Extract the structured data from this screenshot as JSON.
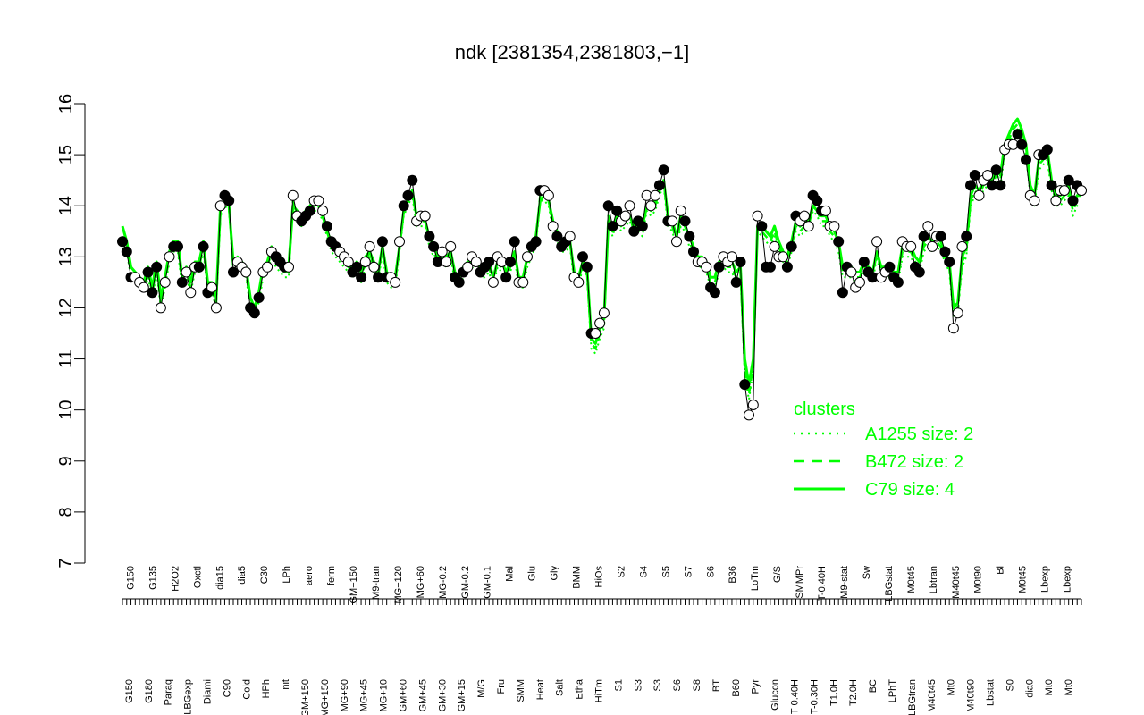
{
  "chart_data": {
    "type": "line",
    "title": "ndk [2381354,2381803,−1]",
    "xlabel": "",
    "ylabel": "",
    "ylim": [
      7,
      16
    ],
    "yticks": [
      7,
      8,
      9,
      10,
      11,
      12,
      13,
      14,
      15,
      16
    ],
    "grid": false,
    "colors": {
      "cluster": "#00ff00",
      "points": "#000000",
      "axis": "#000000",
      "background": "#ffffff"
    },
    "x_labels_top": [
      "G150",
      "G135",
      "H2O2",
      "Oxctl",
      "dia15",
      "dia5",
      "C30",
      "LPh",
      "aero",
      "ferm",
      "GM+150",
      "M9-tran",
      "MG+120",
      "MG+60",
      "MG-0.2",
      "GM-0.2",
      "GM-0.1",
      "Mal",
      "Glu",
      "Gly",
      "BMM",
      "HiOs",
      "S2",
      "S4",
      "S5",
      "S7",
      "S6",
      "B36",
      "LoTm",
      "G/S",
      "SMMPr",
      "T-0.40H",
      "M9-stat",
      "Sw",
      "LBGstat",
      "M0t45",
      "Lbtran",
      "M40t45",
      "M0t90",
      "Bl",
      "M0t45",
      "Lbexp",
      "Lbexp"
    ],
    "x_labels_bottom": [
      "G150",
      "G180",
      "Paraq",
      "LBGexp",
      "Diami",
      "C90",
      "Cold",
      "HPh",
      "nit",
      "GM+150",
      "MG+150",
      "MG+90",
      "MG+45",
      "MG+10",
      "GM+60",
      "GM+45",
      "GM+30",
      "GM+15",
      "M/G",
      "Fru",
      "SMM",
      "Heat",
      "Salt",
      "Etha",
      "HiTm",
      "S1",
      "S3",
      "S3",
      "S6",
      "S8",
      "BT",
      "B60",
      "Pyr",
      "Glucon",
      "T-0.40H",
      "T-0.30H",
      "T1.0H",
      "T2.0H",
      "BC",
      "LPhT",
      "LBGtran",
      "M40t45",
      "Mt0",
      "M40t90",
      "Lbstat",
      "S0",
      "dia0",
      "Mt0",
      "Mt0"
    ],
    "legend": {
      "title": "clusters",
      "placement": "right",
      "entries": [
        {
          "label": "A1255 size: 2",
          "style": "dotted"
        },
        {
          "label": "B472 size: 2",
          "style": "dashed"
        },
        {
          "label": "C79 size: 4",
          "style": "solid"
        }
      ]
    },
    "series": [
      {
        "style": "points-line",
        "y": [
          13.3,
          13.1,
          12.6,
          12.6,
          12.5,
          12.4,
          12.7,
          12.3,
          12.8,
          12.0,
          12.5,
          13.0,
          13.2,
          13.2,
          12.5,
          12.7,
          12.3,
          12.8,
          12.8,
          13.2,
          12.3,
          12.4,
          12.0,
          14.0,
          14.2,
          14.1,
          12.7,
          12.9,
          12.8,
          12.7,
          12.0,
          11.9,
          12.2,
          12.7,
          12.8,
          13.1,
          13.0,
          12.9,
          12.8,
          12.8,
          14.2,
          13.8,
          13.7,
          13.8,
          13.9,
          14.1,
          14.1,
          13.9,
          13.6,
          13.3,
          13.2,
          13.1,
          13.0,
          12.9,
          12.7,
          12.8,
          12.6,
          12.9,
          13.2,
          12.8,
          12.6,
          13.3,
          12.6,
          12.6,
          12.5,
          13.3,
          14.0,
          14.2,
          14.5,
          13.7,
          13.8,
          13.8,
          13.4,
          13.2,
          12.9,
          13.1,
          12.9,
          13.2,
          12.6,
          12.5,
          12.7,
          12.8,
          13.0,
          12.9,
          12.7,
          12.8,
          12.9,
          12.5,
          13.0,
          12.9,
          12.6,
          12.9,
          13.3,
          12.5,
          12.5,
          13.0,
          13.2,
          13.3,
          14.3,
          14.3,
          14.2,
          13.6,
          13.4,
          13.2,
          13.3,
          13.4,
          12.6,
          12.5,
          13.0,
          12.8,
          11.5,
          11.5,
          11.7,
          11.9,
          14.0,
          13.6,
          13.9,
          13.7,
          13.8,
          14.0,
          13.5,
          13.7,
          13.6,
          14.2,
          14.0,
          14.2,
          14.4,
          14.7,
          13.7,
          13.7,
          13.3,
          13.9,
          13.7,
          13.4,
          13.1,
          12.9,
          12.9,
          12.8,
          12.4,
          12.3,
          12.8,
          13.0,
          12.9,
          13.0,
          12.5,
          12.9,
          10.5,
          9.9,
          10.1,
          13.8,
          13.6,
          12.8,
          12.8,
          13.2,
          13.0,
          13.0,
          12.8,
          13.2,
          13.8,
          13.7,
          13.8,
          13.6,
          14.2,
          14.1,
          13.9,
          13.9,
          13.6,
          13.6,
          13.3,
          12.3,
          12.8,
          12.7,
          12.4,
          12.5,
          12.9,
          12.7,
          12.6,
          13.3,
          12.6,
          12.7,
          12.8,
          12.6,
          12.5,
          13.3,
          13.2,
          13.2,
          12.8,
          12.7,
          13.4,
          13.6,
          13.2,
          13.4,
          13.4,
          13.1,
          12.9,
          11.6,
          11.9,
          13.2,
          13.4,
          14.4,
          14.6,
          14.2,
          14.5,
          14.6,
          14.4,
          14.7,
          14.4,
          15.1,
          15.2,
          15.2,
          15.4,
          15.2,
          14.9,
          14.2,
          14.1,
          15.0,
          15.0,
          15.1,
          14.4,
          14.1,
          14.3,
          14.3,
          14.5,
          14.1,
          14.4,
          14.3
        ]
      },
      {
        "style": "cluster-C79",
        "y": [
          13.6,
          13.3,
          12.8,
          12.7,
          12.6,
          12.5,
          12.8,
          12.4,
          12.9,
          12.2,
          12.6,
          13.1,
          13.3,
          13.3,
          12.6,
          12.8,
          12.5,
          12.9,
          12.9,
          13.3,
          12.5,
          12.5,
          12.2,
          14.0,
          14.1,
          14.0,
          12.9,
          13.0,
          12.9,
          12.8,
          12.2,
          12.0,
          12.3,
          12.8,
          12.9,
          13.2,
          13.0,
          12.9,
          12.8,
          12.8,
          14.0,
          13.9,
          13.8,
          13.9,
          14.0,
          14.1,
          14.0,
          13.8,
          13.5,
          13.3,
          13.2,
          13.1,
          13.0,
          12.9,
          12.8,
          12.9,
          12.7,
          13.0,
          13.1,
          12.9,
          12.7,
          13.2,
          12.7,
          12.6,
          12.6,
          13.2,
          13.9,
          14.1,
          14.3,
          13.8,
          13.8,
          13.7,
          13.4,
          13.2,
          13.0,
          13.1,
          13.0,
          13.1,
          12.7,
          12.6,
          12.8,
          12.9,
          12.9,
          12.9,
          12.8,
          12.8,
          12.9,
          12.6,
          12.9,
          12.9,
          12.7,
          12.9,
          13.1,
          12.6,
          12.6,
          13.0,
          13.2,
          13.4,
          14.1,
          14.2,
          14.1,
          13.7,
          13.5,
          13.3,
          13.3,
          13.3,
          12.7,
          12.6,
          12.9,
          12.8,
          11.4,
          11.3,
          11.6,
          11.8,
          13.7,
          13.5,
          13.8,
          13.7,
          13.7,
          13.8,
          13.6,
          13.7,
          13.6,
          14.0,
          14.0,
          14.1,
          14.3,
          14.5,
          13.8,
          13.7,
          13.4,
          13.8,
          13.6,
          13.4,
          13.2,
          13.0,
          13.0,
          12.9,
          12.6,
          12.6,
          12.9,
          13.0,
          12.9,
          12.9,
          12.7,
          12.8,
          11.0,
          10.5,
          11.0,
          13.6,
          13.6,
          13.5,
          13.4,
          13.6,
          13.3,
          13.1,
          13.0,
          13.3,
          13.7,
          13.6,
          13.7,
          13.7,
          14.0,
          13.9,
          13.8,
          13.8,
          13.6,
          13.5,
          13.3,
          12.8,
          12.8,
          12.8,
          12.7,
          12.7,
          12.9,
          12.8,
          12.7,
          13.1,
          12.8,
          12.8,
          12.8,
          12.7,
          12.7,
          13.2,
          13.2,
          13.2,
          13.0,
          12.9,
          13.3,
          13.4,
          13.3,
          13.4,
          13.3,
          13.1,
          12.9,
          12.0,
          12.1,
          13.0,
          13.2,
          14.2,
          14.4,
          14.3,
          14.5,
          14.6,
          14.5,
          14.7,
          14.6,
          15.2,
          15.4,
          15.6,
          15.7,
          15.5,
          15.2,
          14.4,
          14.2,
          14.9,
          15.0,
          15.1,
          14.5,
          14.2,
          14.2,
          14.3,
          14.4,
          14.0,
          14.2,
          14.2
        ]
      },
      {
        "style": "cluster-B472",
        "y": [
          13.4,
          13.2,
          12.7,
          12.6,
          12.6,
          12.4,
          12.7,
          12.3,
          12.8,
          12.1,
          12.5,
          13.0,
          13.2,
          13.2,
          12.5,
          12.7,
          12.4,
          12.8,
          12.8,
          13.2,
          12.4,
          12.4,
          12.1,
          13.9,
          14.1,
          14.0,
          12.8,
          12.9,
          12.8,
          12.7,
          12.1,
          12.0,
          12.2,
          12.7,
          12.8,
          13.1,
          12.9,
          12.8,
          12.7,
          12.7,
          14.1,
          13.8,
          13.7,
          13.8,
          13.9,
          14.0,
          14.0,
          13.8,
          13.5,
          13.2,
          13.1,
          13.0,
          12.9,
          12.8,
          12.7,
          12.8,
          12.6,
          12.9,
          13.1,
          12.8,
          12.6,
          13.2,
          12.6,
          12.5,
          12.5,
          13.2,
          13.9,
          14.1,
          14.3,
          13.7,
          13.7,
          13.7,
          13.3,
          13.1,
          12.9,
          13.0,
          12.9,
          13.1,
          12.6,
          12.5,
          12.7,
          12.8,
          12.9,
          12.8,
          12.7,
          12.7,
          12.8,
          12.5,
          12.9,
          12.8,
          12.6,
          12.8,
          13.1,
          12.5,
          12.5,
          12.9,
          13.1,
          13.3,
          14.2,
          14.2,
          14.1,
          13.6,
          13.4,
          13.2,
          13.2,
          13.3,
          12.6,
          12.5,
          12.9,
          12.7,
          11.3,
          11.2,
          11.5,
          11.7,
          13.8,
          13.5,
          13.8,
          13.6,
          13.7,
          13.8,
          13.5,
          13.6,
          13.5,
          14.0,
          13.9,
          14.0,
          14.3,
          14.5,
          13.7,
          13.6,
          13.3,
          13.7,
          13.6,
          13.3,
          13.1,
          12.9,
          12.9,
          12.8,
          12.5,
          12.5,
          12.8,
          12.9,
          12.8,
          12.8,
          12.6,
          12.7,
          10.8,
          10.3,
          10.9,
          13.6,
          13.5,
          13.4,
          13.3,
          13.5,
          13.2,
          13.0,
          12.9,
          13.2,
          13.6,
          13.5,
          13.6,
          13.6,
          14.0,
          13.9,
          13.7,
          13.7,
          13.5,
          13.4,
          13.2,
          12.7,
          12.7,
          12.7,
          12.6,
          12.6,
          12.8,
          12.7,
          12.6,
          13.1,
          12.7,
          12.7,
          12.7,
          12.6,
          12.6,
          13.1,
          13.1,
          13.1,
          12.9,
          12.8,
          13.2,
          13.3,
          13.2,
          13.3,
          13.2,
          13.0,
          12.8,
          11.9,
          12.0,
          12.9,
          13.1,
          14.1,
          14.3,
          14.2,
          14.4,
          14.5,
          14.4,
          14.6,
          14.5,
          15.1,
          15.3,
          15.5,
          15.6,
          15.4,
          15.1,
          14.3,
          14.1,
          14.8,
          14.9,
          15.0,
          14.4,
          14.1,
          14.1,
          14.2,
          14.3,
          13.9,
          14.1,
          14.1
        ]
      },
      {
        "style": "cluster-A1255",
        "y": [
          13.3,
          13.1,
          12.6,
          12.6,
          12.5,
          12.3,
          12.6,
          12.2,
          12.7,
          12.0,
          12.4,
          12.9,
          13.1,
          13.1,
          12.4,
          12.6,
          12.3,
          12.7,
          12.7,
          13.1,
          12.3,
          12.3,
          12.0,
          13.8,
          14.0,
          13.9,
          12.7,
          12.8,
          12.7,
          12.6,
          12.0,
          11.9,
          12.1,
          12.6,
          12.7,
          13.0,
          12.8,
          12.7,
          12.6,
          12.6,
          14.0,
          13.7,
          13.6,
          13.7,
          13.8,
          13.9,
          13.9,
          13.7,
          13.4,
          13.1,
          13.0,
          12.9,
          12.8,
          12.7,
          12.6,
          12.7,
          12.5,
          12.8,
          13.0,
          12.7,
          12.5,
          13.1,
          12.5,
          12.4,
          12.4,
          13.1,
          13.8,
          14.0,
          14.2,
          13.6,
          13.6,
          13.6,
          13.2,
          13.0,
          12.8,
          12.9,
          12.8,
          13.0,
          12.5,
          12.4,
          12.6,
          12.7,
          12.8,
          12.7,
          12.6,
          12.6,
          12.7,
          12.4,
          12.8,
          12.7,
          12.5,
          12.7,
          13.0,
          12.4,
          12.4,
          12.8,
          13.0,
          13.2,
          14.1,
          14.1,
          14.0,
          13.5,
          13.3,
          13.1,
          13.1,
          13.2,
          12.5,
          12.4,
          12.8,
          12.6,
          11.2,
          11.1,
          11.4,
          11.6,
          13.7,
          13.4,
          13.7,
          13.5,
          13.6,
          13.7,
          13.4,
          13.5,
          13.4,
          13.9,
          13.8,
          13.9,
          14.2,
          14.4,
          13.6,
          13.5,
          13.2,
          13.6,
          13.5,
          13.2,
          13.0,
          12.8,
          12.8,
          12.7,
          12.4,
          12.4,
          12.7,
          12.8,
          12.7,
          12.7,
          12.5,
          12.6,
          10.7,
          10.2,
          10.8,
          13.5,
          13.4,
          13.3,
          13.2,
          13.4,
          13.1,
          12.9,
          12.8,
          13.1,
          13.5,
          13.4,
          13.5,
          13.5,
          13.9,
          13.8,
          13.6,
          13.6,
          13.4,
          13.3,
          13.1,
          12.6,
          12.6,
          12.6,
          12.5,
          12.5,
          12.7,
          12.6,
          12.5,
          13.0,
          12.6,
          12.6,
          12.6,
          12.5,
          12.5,
          13.0,
          13.0,
          13.0,
          12.8,
          12.7,
          13.1,
          13.2,
          13.1,
          13.2,
          13.1,
          12.9,
          12.7,
          11.8,
          11.9,
          12.8,
          13.0,
          14.0,
          14.2,
          14.1,
          14.3,
          14.4,
          14.3,
          14.5,
          14.4,
          15.0,
          15.2,
          15.4,
          15.5,
          15.3,
          15.0,
          14.2,
          14.0,
          14.7,
          14.8,
          14.9,
          14.3,
          14.0,
          14.0,
          14.1,
          14.2,
          13.8,
          14.0,
          14.0
        ]
      }
    ]
  }
}
